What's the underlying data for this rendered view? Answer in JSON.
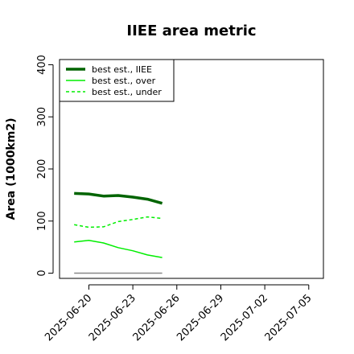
{
  "chart_data": {
    "type": "line",
    "title": "IIEE area metric",
    "xlabel": "",
    "ylabel": "Area (1000km2)",
    "x_dates": [
      "2025-06-19",
      "2025-06-20",
      "2025-06-21",
      "2025-06-22",
      "2025-06-23",
      "2025-06-24",
      "2025-06-25"
    ],
    "xlim": [
      "2025-06-18",
      "2025-07-06"
    ],
    "xticks": [
      "2025-06-20",
      "2025-06-23",
      "2025-06-26",
      "2025-06-29",
      "2025-07-02",
      "2025-07-05"
    ],
    "ylim": [
      -10,
      410
    ],
    "yticks": [
      0,
      100,
      200,
      300,
      400
    ],
    "legend_position": "top-left",
    "grid": false,
    "series": [
      {
        "name": "best est., IIEE",
        "values": [
          153,
          152,
          148,
          149,
          146,
          142,
          134
        ],
        "color": "#006400",
        "style": "solid",
        "width": "thick"
      },
      {
        "name": "best est., over",
        "values": [
          60,
          63,
          58,
          49,
          43,
          35,
          30
        ],
        "color": "#00ee00",
        "style": "solid",
        "width": "thin"
      },
      {
        "name": "best est., under",
        "values": [
          93,
          88,
          89,
          99,
          103,
          108,
          105
        ],
        "color": "#00ee00",
        "style": "dashed",
        "width": "thin"
      },
      {
        "name": "",
        "values": [
          0,
          0,
          0,
          0,
          0,
          0,
          0
        ],
        "color": "#888888",
        "style": "solid",
        "width": "thin"
      }
    ]
  }
}
